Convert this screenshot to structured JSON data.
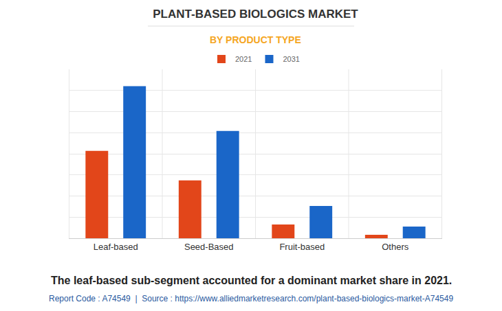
{
  "chart_data": {
    "type": "bar",
    "title": "PLANT-BASED BIOLOGICS MARKET",
    "subtitle": "BY PRODUCT TYPE",
    "categories": [
      "Leaf-based",
      "Seed-Based",
      "Fruit-based",
      "Others"
    ],
    "series": [
      {
        "name": "2021",
        "color": "#e2461a",
        "values": [
          4.14,
          2.74,
          0.65,
          0.16
        ]
      },
      {
        "name": "2031",
        "color": "#1a66c8",
        "values": [
          7.2,
          5.08,
          1.53,
          0.55
        ]
      }
    ],
    "ylim": [
      0,
      8
    ],
    "yticks": [
      0,
      1,
      2,
      3,
      4,
      5,
      6,
      7,
      8
    ],
    "grid": true,
    "tick_labels": "x",
    "legend": "top",
    "annotations": [
      "The leaf-based sub-segment accounted for a dominant market share in 2021.",
      "Report Code : A74549  |  Source : https://www.alliedmarketresearch.com/plant-based-biologics-market-A74549"
    ]
  }
}
